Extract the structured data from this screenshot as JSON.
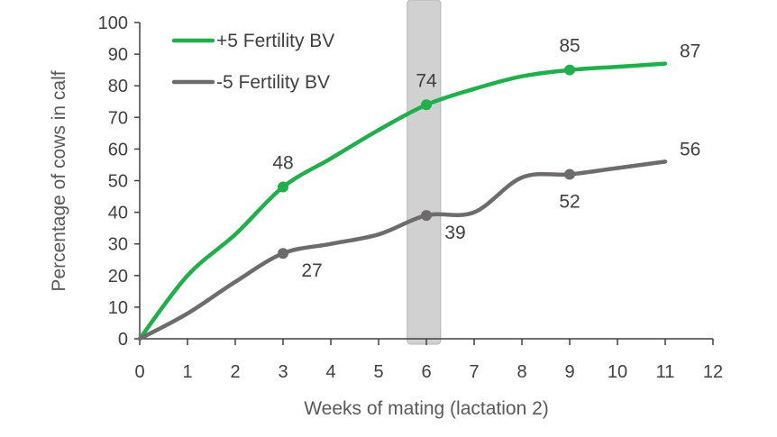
{
  "chart_data": {
    "type": "line",
    "xlabel": "Weeks of mating (lactation 2)",
    "ylabel": "Percentage of cows in calf",
    "xlim": [
      0,
      12
    ],
    "ylim": [
      0,
      100
    ],
    "x_ticks": [
      0,
      1,
      2,
      3,
      4,
      5,
      6,
      7,
      8,
      9,
      10,
      11,
      12
    ],
    "y_ticks": [
      0,
      10,
      20,
      30,
      40,
      50,
      60,
      70,
      80,
      90,
      100
    ],
    "grid": false,
    "legend": "top-left",
    "highlight_band": {
      "x_from": 5.6,
      "x_to": 6.3
    },
    "series": [
      {
        "name": "+5 Fertility BV",
        "color": "#1fb04b",
        "x": [
          0,
          1,
          2,
          3,
          4,
          5,
          6,
          7,
          8,
          9,
          10,
          11
        ],
        "values": [
          0,
          20,
          33,
          48,
          57,
          66,
          74,
          79,
          83,
          85,
          86,
          87
        ],
        "markers": [
          3,
          6,
          9
        ],
        "labels": [
          {
            "x": 3,
            "y": 48,
            "text": "48",
            "pos": "above"
          },
          {
            "x": 6,
            "y": 74,
            "text": "74",
            "pos": "above"
          },
          {
            "x": 9,
            "y": 85,
            "text": "85",
            "pos": "above"
          },
          {
            "x": 11,
            "y": 87,
            "text": "87",
            "pos": "right"
          }
        ]
      },
      {
        "name": "-5 Fertility BV",
        "color": "#6d6b6b",
        "x": [
          0,
          1,
          2,
          3,
          4,
          5,
          6,
          7,
          8,
          9,
          10,
          11
        ],
        "values": [
          0,
          8,
          18,
          27,
          30,
          33,
          39,
          40,
          51,
          52,
          54,
          56
        ],
        "markers": [
          3,
          6,
          9
        ],
        "labels": [
          {
            "x": 3,
            "y": 27,
            "text": "27",
            "pos": "below-right"
          },
          {
            "x": 6,
            "y": 39,
            "text": "39",
            "pos": "below-right"
          },
          {
            "x": 9,
            "y": 52,
            "text": "52",
            "pos": "below"
          },
          {
            "x": 11,
            "y": 56,
            "text": "56",
            "pos": "right"
          }
        ]
      }
    ]
  }
}
